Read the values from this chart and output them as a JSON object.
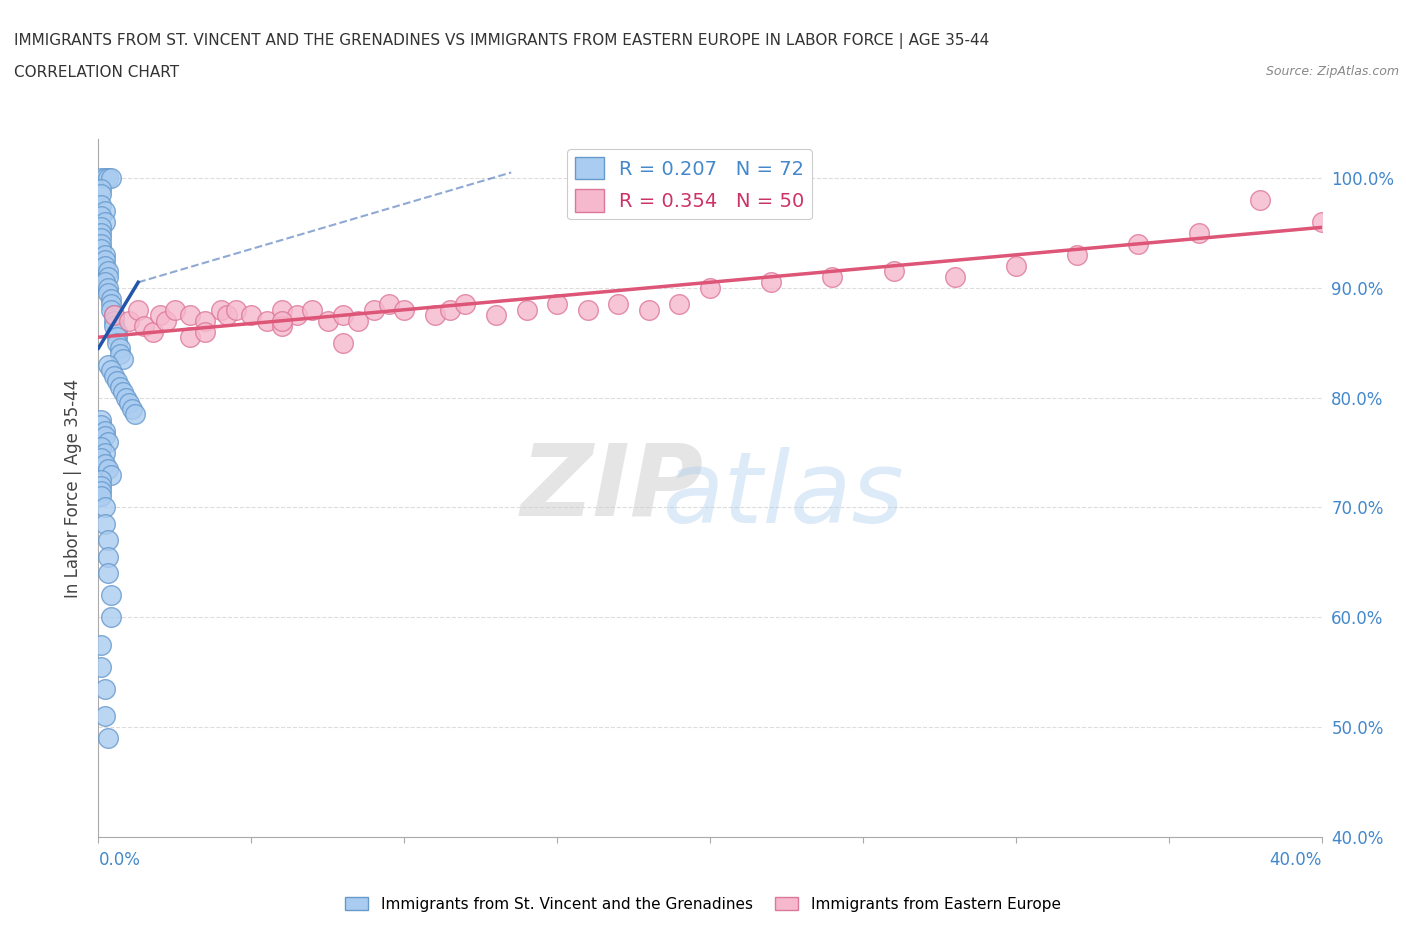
{
  "title_line1": "IMMIGRANTS FROM ST. VINCENT AND THE GRENADINES VS IMMIGRANTS FROM EASTERN EUROPE IN LABOR FORCE | AGE 35-44",
  "title_line2": "CORRELATION CHART",
  "source": "Source: ZipAtlas.com",
  "series1_name": "Immigrants from St. Vincent and the Grenadines",
  "series2_name": "Immigrants from Eastern Europe",
  "series1_R": "0.207",
  "series1_N": "72",
  "series2_R": "0.354",
  "series2_N": "50",
  "series1_color": "#aaccf0",
  "series2_color": "#f5b8cc",
  "series1_edge": "#6699cc",
  "series2_edge": "#dd7799",
  "trendline1_color": "#2255aa",
  "trendline2_color": "#dd5577",
  "watermark_zip": "ZIP",
  "watermark_atlas": "atlas",
  "xmin": 0.0,
  "xmax": 0.4,
  "ymin": 0.4,
  "ymax": 1.035,
  "sv_x": [
    0.001,
    0.002,
    0.003,
    0.004,
    0.001,
    0.001,
    0.001,
    0.002,
    0.001,
    0.002,
    0.001,
    0.001,
    0.001,
    0.001,
    0.001,
    0.002,
    0.002,
    0.002,
    0.003,
    0.003,
    0.002,
    0.003,
    0.003,
    0.004,
    0.004,
    0.004,
    0.005,
    0.005,
    0.005,
    0.006,
    0.006,
    0.006,
    0.007,
    0.007,
    0.008,
    0.003,
    0.004,
    0.005,
    0.006,
    0.007,
    0.008,
    0.009,
    0.01,
    0.011,
    0.012,
    0.001,
    0.001,
    0.002,
    0.002,
    0.003,
    0.001,
    0.002,
    0.001,
    0.002,
    0.003,
    0.004,
    0.001,
    0.001,
    0.001,
    0.001,
    0.002,
    0.002,
    0.003,
    0.003,
    0.003,
    0.004,
    0.004,
    0.001,
    0.001,
    0.002,
    0.002,
    0.003
  ],
  "sv_y": [
    1.0,
    1.0,
    1.0,
    1.0,
    0.99,
    0.985,
    0.975,
    0.97,
    0.965,
    0.96,
    0.955,
    0.95,
    0.945,
    0.94,
    0.935,
    0.93,
    0.925,
    0.92,
    0.915,
    0.91,
    0.905,
    0.9,
    0.895,
    0.89,
    0.885,
    0.88,
    0.875,
    0.87,
    0.865,
    0.86,
    0.855,
    0.85,
    0.845,
    0.84,
    0.835,
    0.83,
    0.825,
    0.82,
    0.815,
    0.81,
    0.805,
    0.8,
    0.795,
    0.79,
    0.785,
    0.78,
    0.775,
    0.77,
    0.765,
    0.76,
    0.755,
    0.75,
    0.745,
    0.74,
    0.735,
    0.73,
    0.725,
    0.72,
    0.715,
    0.71,
    0.7,
    0.685,
    0.67,
    0.655,
    0.64,
    0.62,
    0.6,
    0.575,
    0.555,
    0.535,
    0.51,
    0.49
  ],
  "ee_x": [
    0.005,
    0.01,
    0.013,
    0.015,
    0.018,
    0.02,
    0.022,
    0.025,
    0.03,
    0.03,
    0.035,
    0.04,
    0.042,
    0.045,
    0.05,
    0.055,
    0.06,
    0.06,
    0.065,
    0.07,
    0.075,
    0.08,
    0.085,
    0.09,
    0.095,
    0.1,
    0.11,
    0.115,
    0.12,
    0.13,
    0.14,
    0.15,
    0.16,
    0.17,
    0.18,
    0.19,
    0.2,
    0.22,
    0.24,
    0.26,
    0.28,
    0.3,
    0.32,
    0.34,
    0.36,
    0.38,
    0.4,
    0.035,
    0.06,
    0.08
  ],
  "ee_y": [
    0.875,
    0.87,
    0.88,
    0.865,
    0.86,
    0.875,
    0.87,
    0.88,
    0.875,
    0.855,
    0.87,
    0.88,
    0.875,
    0.88,
    0.875,
    0.87,
    0.88,
    0.865,
    0.875,
    0.88,
    0.87,
    0.875,
    0.87,
    0.88,
    0.885,
    0.88,
    0.875,
    0.88,
    0.885,
    0.875,
    0.88,
    0.885,
    0.88,
    0.885,
    0.88,
    0.885,
    0.9,
    0.905,
    0.91,
    0.915,
    0.91,
    0.92,
    0.93,
    0.94,
    0.95,
    0.98,
    0.96,
    0.86,
    0.87,
    0.85
  ]
}
